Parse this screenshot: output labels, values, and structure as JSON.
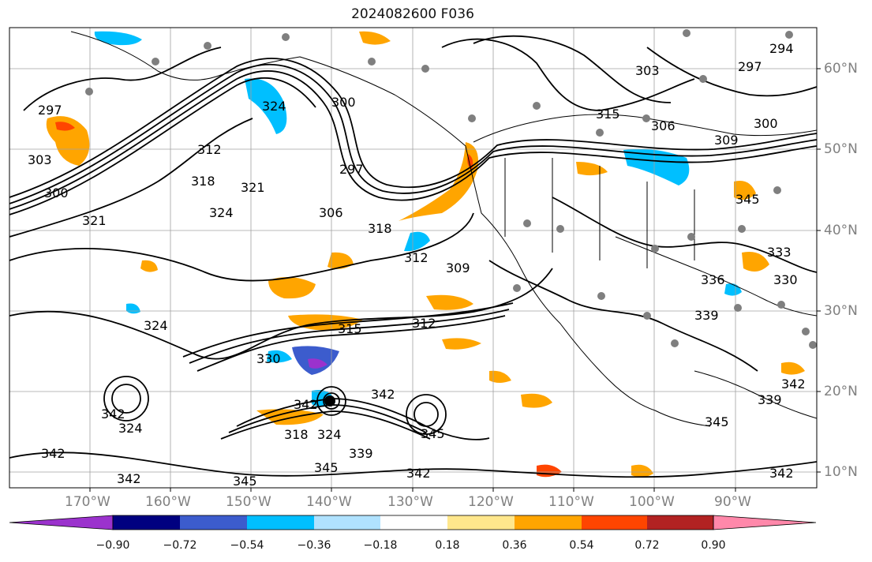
{
  "title": "2024082600 F036",
  "map": {
    "lat_labels": [
      "60°N",
      "50°N",
      "40°N",
      "30°N",
      "20°N",
      "10°N"
    ],
    "lon_labels": [
      "170°W",
      "160°W",
      "150°W",
      "140°W",
      "130°W",
      "120°W",
      "110°W",
      "100°W",
      "90°W"
    ],
    "contour_labels": [
      "297",
      "303",
      "300",
      "321",
      "324",
      "312",
      "318",
      "324",
      "321",
      "300",
      "297",
      "306",
      "318",
      "312",
      "309",
      "303",
      "306",
      "300",
      "309",
      "297",
      "294",
      "315",
      "345",
      "333",
      "336",
      "330",
      "339",
      "315",
      "312",
      "324",
      "330",
      "342",
      "324",
      "342",
      "318",
      "324",
      "342",
      "345",
      "339",
      "345",
      "342",
      "342",
      "345",
      "342",
      "339",
      "342",
      "342",
      "345"
    ],
    "grid_color": "#a0a0a0",
    "coast_color": "#000000"
  },
  "colorbar": {
    "ticks": [
      "−0.90",
      "−0.72",
      "−0.54",
      "−0.36",
      "−0.18",
      "0.18",
      "0.36",
      "0.54",
      "0.72",
      "0.90"
    ],
    "colors": [
      "#9b32cd",
      "#000080",
      "#3c5ccd",
      "#00bfff",
      "#b0e2ff",
      "#ffffff",
      "#ffe78c",
      "#ffa500",
      "#ff4500",
      "#b22222",
      "#ff88aa"
    ]
  }
}
